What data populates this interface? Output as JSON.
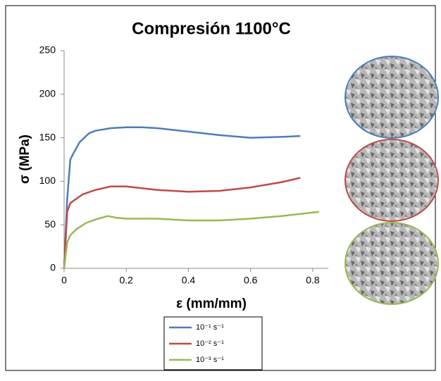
{
  "chart_data": {
    "type": "line",
    "title": "Compresión 1100°C",
    "x_label": "ε (mm/mm)",
    "y_label": "σ (MPa)",
    "xlim": [
      0,
      0.85
    ],
    "ylim": [
      0,
      250
    ],
    "xticks": [
      0,
      0.2,
      0.4,
      0.6,
      0.8
    ],
    "yticks": [
      0,
      50,
      100,
      150,
      200,
      250
    ],
    "series": [
      {
        "name": "10⁻¹ s⁻¹",
        "color": "#4a7ebb",
        "x": [
          0,
          0.01,
          0.02,
          0.03,
          0.05,
          0.08,
          0.1,
          0.15,
          0.2,
          0.25,
          0.3,
          0.4,
          0.5,
          0.6,
          0.7,
          0.76
        ],
        "values": [
          0,
          80,
          125,
          132,
          145,
          155,
          158,
          161,
          162,
          162,
          161,
          157,
          153,
          150,
          151,
          152
        ]
      },
      {
        "name": "10⁻² s⁻¹",
        "color": "#be4b48",
        "x": [
          0,
          0.01,
          0.02,
          0.04,
          0.06,
          0.1,
          0.15,
          0.2,
          0.3,
          0.4,
          0.5,
          0.6,
          0.7,
          0.76
        ],
        "values": [
          0,
          65,
          75,
          80,
          85,
          90,
          94,
          94,
          90,
          88,
          89,
          93,
          99,
          104
        ]
      },
      {
        "name": "10⁻³ s⁻¹",
        "color": "#98b954",
        "x": [
          0,
          0.01,
          0.02,
          0.04,
          0.07,
          0.1,
          0.14,
          0.17,
          0.2,
          0.3,
          0.4,
          0.5,
          0.6,
          0.7,
          0.82
        ],
        "values": [
          0,
          30,
          38,
          45,
          52,
          56,
          60,
          58,
          57,
          57,
          55,
          55,
          57,
          60,
          65
        ]
      }
    ]
  }
}
